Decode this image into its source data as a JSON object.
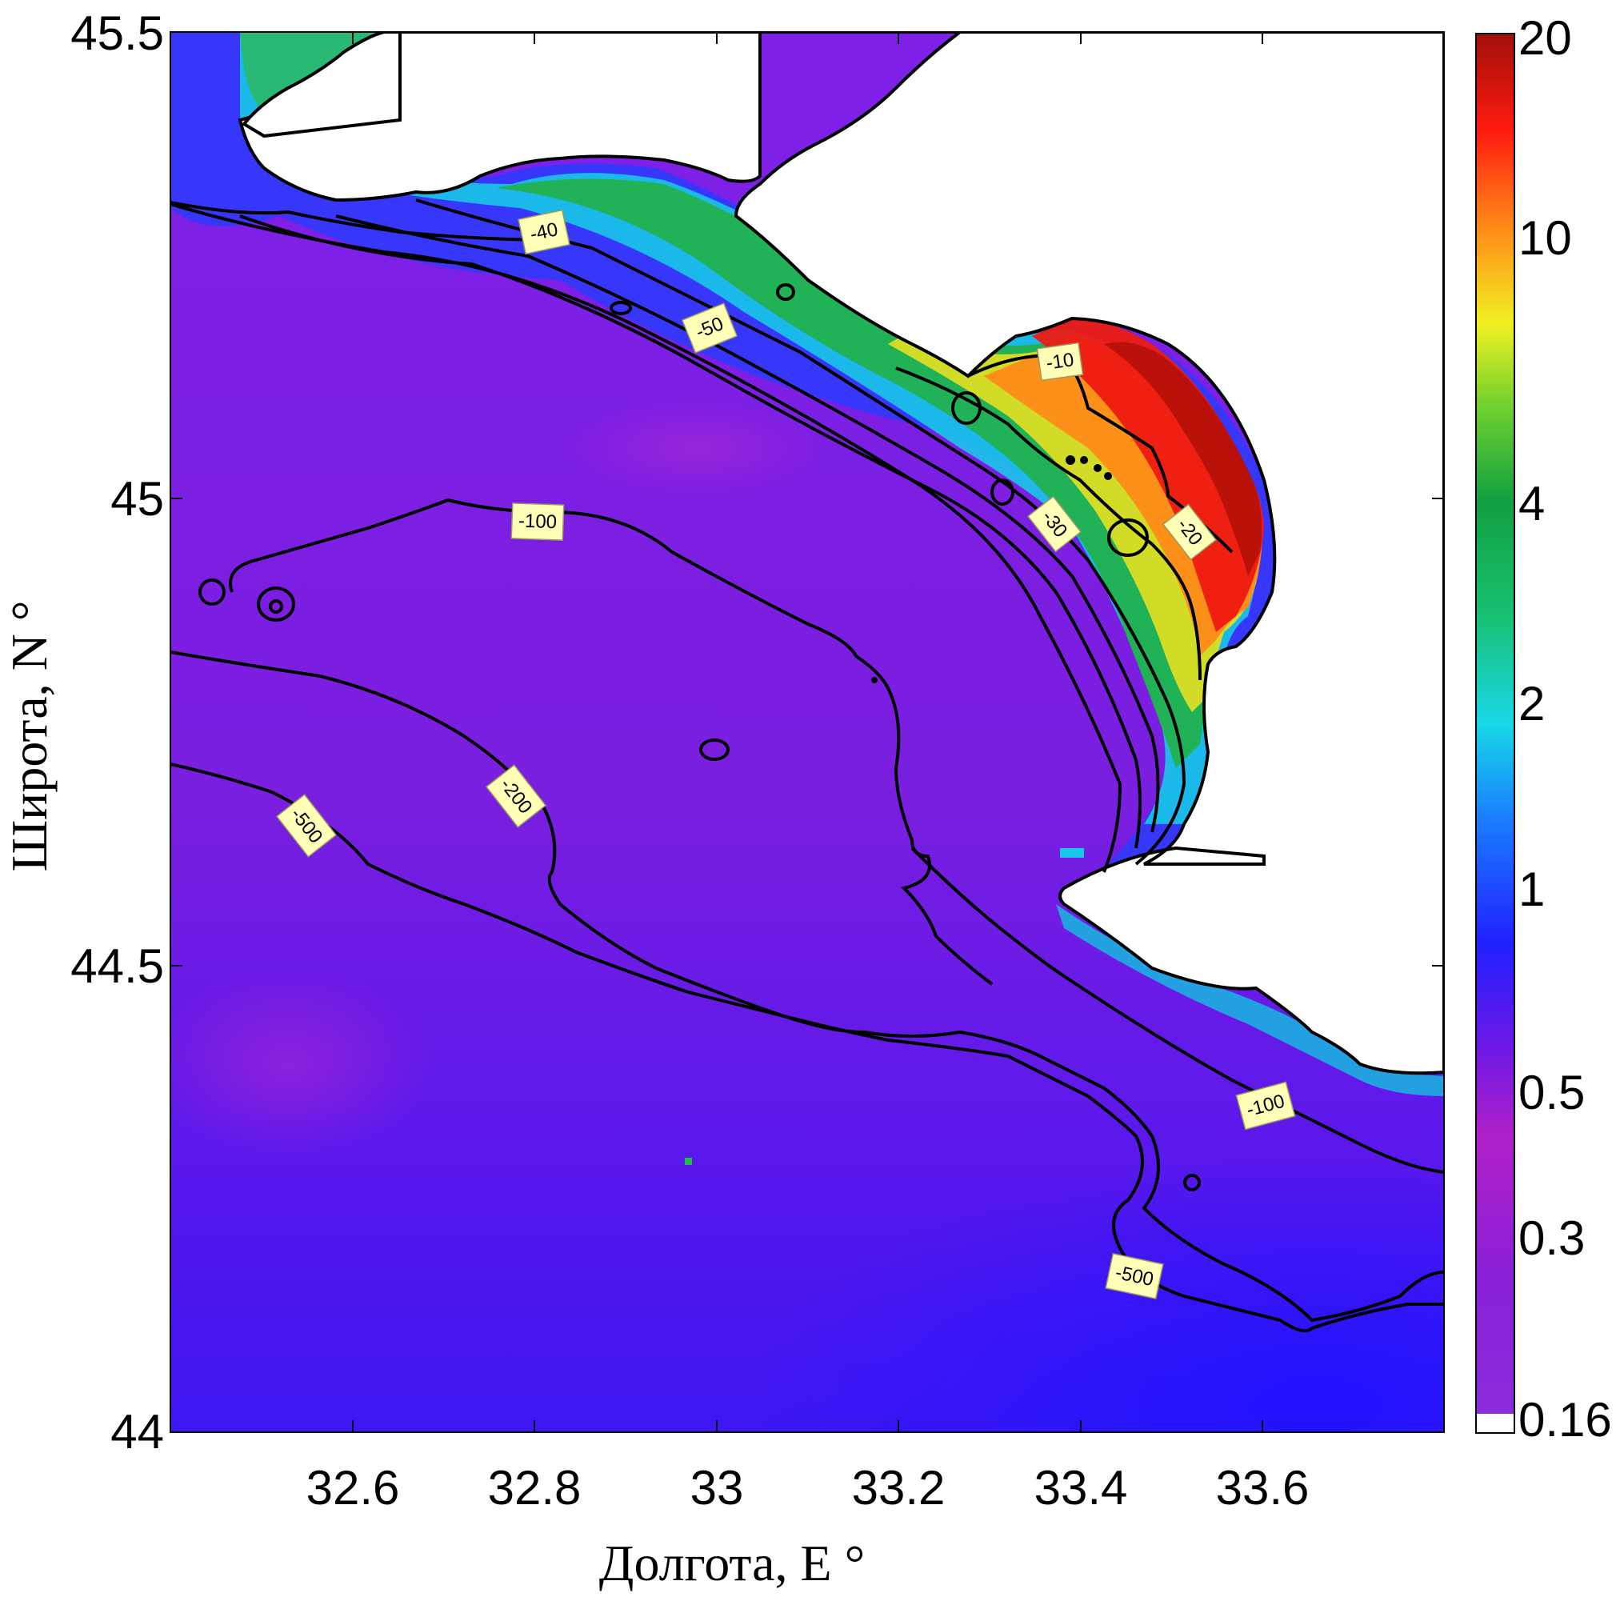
{
  "chart_data": {
    "type": "heatmap",
    "title": "",
    "xlabel": "Долгота, E °",
    "ylabel": "Широта, N °",
    "xlim": [
      32.4,
      33.8
    ],
    "ylim": [
      44.0,
      45.5
    ],
    "x_ticks": [
      "32.6",
      "32.8",
      "33",
      "33.2",
      "33.4",
      "33.6"
    ],
    "y_ticks": [
      "44",
      "44.5",
      "45",
      "45.5"
    ],
    "colorbar": {
      "scale": "log",
      "ticks": [
        "20",
        "10",
        "4",
        "2",
        "1",
        "0.5",
        "0.3",
        "0.16"
      ],
      "range": [
        0.16,
        20
      ]
    },
    "isobath_labels": [
      "-10",
      "-20",
      "-30",
      "-40",
      "-50",
      "-100",
      "-100",
      "-200",
      "-500",
      "-500"
    ]
  },
  "colors": {
    "land": "#ffffff",
    "deep_water": "#7a1ee0",
    "offshore_blue": "#3a14f0",
    "isoline": "#000000",
    "label_bg": "#ffffb8"
  }
}
